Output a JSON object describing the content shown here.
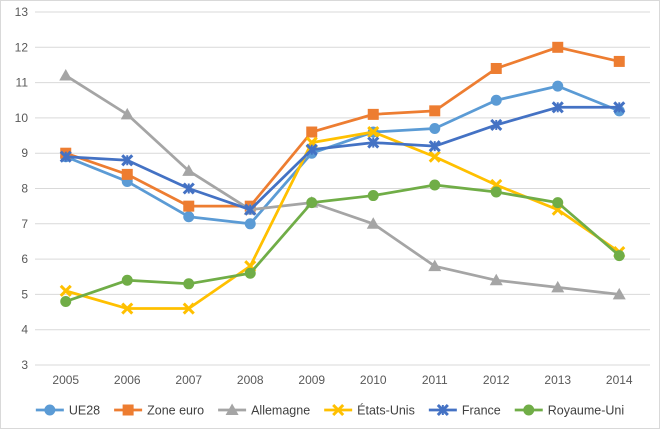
{
  "chart_data": {
    "type": "line",
    "title": "",
    "xlabel": "",
    "ylabel": "",
    "ylim": [
      3,
      13
    ],
    "yticks": [
      3,
      4,
      5,
      6,
      7,
      8,
      9,
      10,
      11,
      12,
      13
    ],
    "grid": true,
    "legend_position": "bottom",
    "categories": [
      "2005",
      "2006",
      "2007",
      "2008",
      "2009",
      "2010",
      "2011",
      "2012",
      "2013",
      "2014"
    ],
    "series": [
      {
        "name": "UE28",
        "color": "#5b9bd5",
        "marker": "circle",
        "values": [
          8.9,
          8.2,
          7.2,
          7.0,
          9.0,
          9.6,
          9.7,
          10.5,
          10.9,
          10.2
        ]
      },
      {
        "name": "Zone euro",
        "color": "#ed7d31",
        "marker": "square",
        "values": [
          9.0,
          8.4,
          7.5,
          7.5,
          9.6,
          10.1,
          10.2,
          11.4,
          12.0,
          11.6
        ]
      },
      {
        "name": "Allemagne",
        "color": "#a5a5a5",
        "marker": "triangle",
        "values": [
          11.2,
          10.1,
          8.5,
          7.4,
          7.6,
          7.0,
          5.8,
          5.4,
          5.2,
          5.0
        ]
      },
      {
        "name": "États-Unis",
        "color": "#ffc000",
        "marker": "x",
        "values": [
          5.1,
          4.6,
          4.6,
          5.8,
          9.3,
          9.6,
          8.9,
          8.1,
          7.4,
          6.2
        ]
      },
      {
        "name": "France",
        "color": "#4472c4",
        "marker": "star",
        "values": [
          8.9,
          8.8,
          8.0,
          7.4,
          9.1,
          9.3,
          9.2,
          9.8,
          10.3,
          10.3
        ]
      },
      {
        "name": "Royaume-Uni",
        "color": "#70ad47",
        "marker": "circle",
        "values": [
          4.8,
          5.4,
          5.3,
          5.6,
          7.6,
          7.8,
          8.1,
          7.9,
          7.6,
          6.1
        ]
      }
    ]
  }
}
